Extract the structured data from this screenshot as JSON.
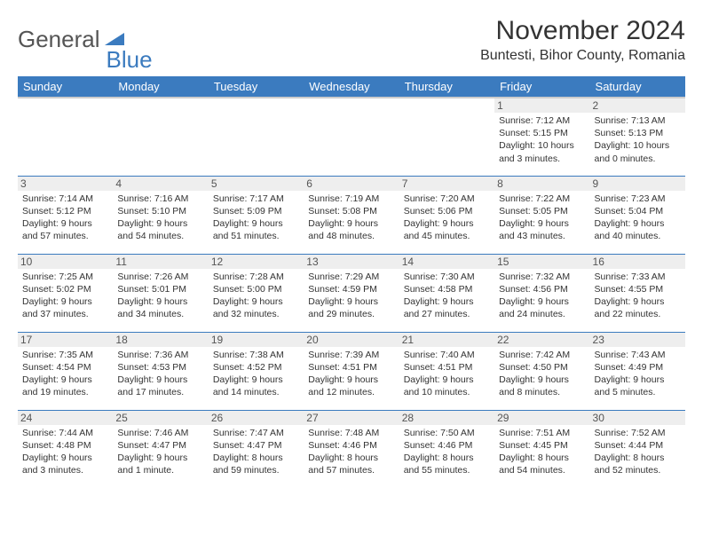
{
  "brand": {
    "general": "General",
    "blue": "Blue"
  },
  "title": "November 2024",
  "location": "Buntesti, Bihor County, Romania",
  "colors": {
    "header_bg": "#3b7bbf",
    "header_text": "#ffffff",
    "daynum_bg": "#eeeeee",
    "row_border": "#3b7bbf",
    "body_text": "#333333",
    "logo_gray": "#555555",
    "logo_blue": "#3b7bbf",
    "page_bg": "#ffffff"
  },
  "typography": {
    "title_fontsize": 30,
    "location_fontsize": 16,
    "dayheader_fontsize": 13,
    "daynum_fontsize": 12,
    "cell_fontsize": 10.5
  },
  "day_headers": [
    "Sunday",
    "Monday",
    "Tuesday",
    "Wednesday",
    "Thursday",
    "Friday",
    "Saturday"
  ],
  "weeks": [
    [
      {
        "n": "",
        "sr": "",
        "ss": "",
        "dl": ""
      },
      {
        "n": "",
        "sr": "",
        "ss": "",
        "dl": ""
      },
      {
        "n": "",
        "sr": "",
        "ss": "",
        "dl": ""
      },
      {
        "n": "",
        "sr": "",
        "ss": "",
        "dl": ""
      },
      {
        "n": "",
        "sr": "",
        "ss": "",
        "dl": ""
      },
      {
        "n": "1",
        "sr": "Sunrise: 7:12 AM",
        "ss": "Sunset: 5:15 PM",
        "dl": "Daylight: 10 hours and 3 minutes."
      },
      {
        "n": "2",
        "sr": "Sunrise: 7:13 AM",
        "ss": "Sunset: 5:13 PM",
        "dl": "Daylight: 10 hours and 0 minutes."
      }
    ],
    [
      {
        "n": "3",
        "sr": "Sunrise: 7:14 AM",
        "ss": "Sunset: 5:12 PM",
        "dl": "Daylight: 9 hours and 57 minutes."
      },
      {
        "n": "4",
        "sr": "Sunrise: 7:16 AM",
        "ss": "Sunset: 5:10 PM",
        "dl": "Daylight: 9 hours and 54 minutes."
      },
      {
        "n": "5",
        "sr": "Sunrise: 7:17 AM",
        "ss": "Sunset: 5:09 PM",
        "dl": "Daylight: 9 hours and 51 minutes."
      },
      {
        "n": "6",
        "sr": "Sunrise: 7:19 AM",
        "ss": "Sunset: 5:08 PM",
        "dl": "Daylight: 9 hours and 48 minutes."
      },
      {
        "n": "7",
        "sr": "Sunrise: 7:20 AM",
        "ss": "Sunset: 5:06 PM",
        "dl": "Daylight: 9 hours and 45 minutes."
      },
      {
        "n": "8",
        "sr": "Sunrise: 7:22 AM",
        "ss": "Sunset: 5:05 PM",
        "dl": "Daylight: 9 hours and 43 minutes."
      },
      {
        "n": "9",
        "sr": "Sunrise: 7:23 AM",
        "ss": "Sunset: 5:04 PM",
        "dl": "Daylight: 9 hours and 40 minutes."
      }
    ],
    [
      {
        "n": "10",
        "sr": "Sunrise: 7:25 AM",
        "ss": "Sunset: 5:02 PM",
        "dl": "Daylight: 9 hours and 37 minutes."
      },
      {
        "n": "11",
        "sr": "Sunrise: 7:26 AM",
        "ss": "Sunset: 5:01 PM",
        "dl": "Daylight: 9 hours and 34 minutes."
      },
      {
        "n": "12",
        "sr": "Sunrise: 7:28 AM",
        "ss": "Sunset: 5:00 PM",
        "dl": "Daylight: 9 hours and 32 minutes."
      },
      {
        "n": "13",
        "sr": "Sunrise: 7:29 AM",
        "ss": "Sunset: 4:59 PM",
        "dl": "Daylight: 9 hours and 29 minutes."
      },
      {
        "n": "14",
        "sr": "Sunrise: 7:30 AM",
        "ss": "Sunset: 4:58 PM",
        "dl": "Daylight: 9 hours and 27 minutes."
      },
      {
        "n": "15",
        "sr": "Sunrise: 7:32 AM",
        "ss": "Sunset: 4:56 PM",
        "dl": "Daylight: 9 hours and 24 minutes."
      },
      {
        "n": "16",
        "sr": "Sunrise: 7:33 AM",
        "ss": "Sunset: 4:55 PM",
        "dl": "Daylight: 9 hours and 22 minutes."
      }
    ],
    [
      {
        "n": "17",
        "sr": "Sunrise: 7:35 AM",
        "ss": "Sunset: 4:54 PM",
        "dl": "Daylight: 9 hours and 19 minutes."
      },
      {
        "n": "18",
        "sr": "Sunrise: 7:36 AM",
        "ss": "Sunset: 4:53 PM",
        "dl": "Daylight: 9 hours and 17 minutes."
      },
      {
        "n": "19",
        "sr": "Sunrise: 7:38 AM",
        "ss": "Sunset: 4:52 PM",
        "dl": "Daylight: 9 hours and 14 minutes."
      },
      {
        "n": "20",
        "sr": "Sunrise: 7:39 AM",
        "ss": "Sunset: 4:51 PM",
        "dl": "Daylight: 9 hours and 12 minutes."
      },
      {
        "n": "21",
        "sr": "Sunrise: 7:40 AM",
        "ss": "Sunset: 4:51 PM",
        "dl": "Daylight: 9 hours and 10 minutes."
      },
      {
        "n": "22",
        "sr": "Sunrise: 7:42 AM",
        "ss": "Sunset: 4:50 PM",
        "dl": "Daylight: 9 hours and 8 minutes."
      },
      {
        "n": "23",
        "sr": "Sunrise: 7:43 AM",
        "ss": "Sunset: 4:49 PM",
        "dl": "Daylight: 9 hours and 5 minutes."
      }
    ],
    [
      {
        "n": "24",
        "sr": "Sunrise: 7:44 AM",
        "ss": "Sunset: 4:48 PM",
        "dl": "Daylight: 9 hours and 3 minutes."
      },
      {
        "n": "25",
        "sr": "Sunrise: 7:46 AM",
        "ss": "Sunset: 4:47 PM",
        "dl": "Daylight: 9 hours and 1 minute."
      },
      {
        "n": "26",
        "sr": "Sunrise: 7:47 AM",
        "ss": "Sunset: 4:47 PM",
        "dl": "Daylight: 8 hours and 59 minutes."
      },
      {
        "n": "27",
        "sr": "Sunrise: 7:48 AM",
        "ss": "Sunset: 4:46 PM",
        "dl": "Daylight: 8 hours and 57 minutes."
      },
      {
        "n": "28",
        "sr": "Sunrise: 7:50 AM",
        "ss": "Sunset: 4:46 PM",
        "dl": "Daylight: 8 hours and 55 minutes."
      },
      {
        "n": "29",
        "sr": "Sunrise: 7:51 AM",
        "ss": "Sunset: 4:45 PM",
        "dl": "Daylight: 8 hours and 54 minutes."
      },
      {
        "n": "30",
        "sr": "Sunrise: 7:52 AM",
        "ss": "Sunset: 4:44 PM",
        "dl": "Daylight: 8 hours and 52 minutes."
      }
    ]
  ]
}
